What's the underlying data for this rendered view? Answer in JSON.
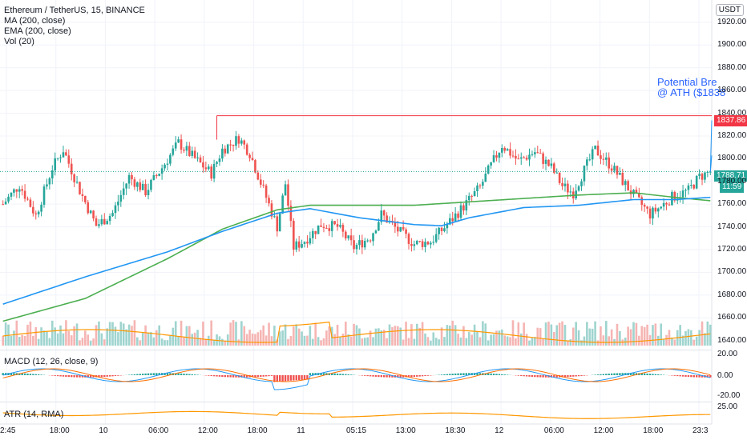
{
  "header": {
    "symbol": "Ethereum / TetherUS, 15, BINANCE",
    "ind1": "MA (200, close)",
    "ind2": "EMA (200, close)",
    "ind3": "Vol (20)",
    "currency": "USDT"
  },
  "annotation": {
    "line1": "Potential Bre",
    "line2": "@ ATH ($1838"
  },
  "price_badges": {
    "ath": "1837.86",
    "last": "1788.71",
    "countdown": "11:59"
  },
  "macd": {
    "label": "MACD (12, 26, close, 9)",
    "ticks": [
      "20.00",
      "0.00",
      "-20.00"
    ]
  },
  "atr": {
    "label": "ATR (14, RMA)",
    "ticks": [
      "25.00"
    ]
  },
  "colors": {
    "up": "#26a69a",
    "down": "#ef5350",
    "ma": "#4caf50",
    "ema": "#2196f3",
    "vol_ma": "#ff9800",
    "macd_line": "#2196f3",
    "signal_line": "#ff6d00",
    "ath_line": "#f23645"
  },
  "chart_data": {
    "type": "candlestick",
    "ylim": [
      1632,
      1934
    ],
    "y_ticks": [
      1640,
      1660,
      1680,
      1700,
      1720,
      1740,
      1760,
      1780,
      1800,
      1820,
      1840,
      1860,
      1880,
      1900,
      1920
    ],
    "x_ticks": [
      "2:45",
      "18:00",
      "10",
      "06:00",
      "12:00",
      "18:00",
      "11",
      "05:15",
      "13:00",
      "18:30",
      "12",
      "06:00",
      "12:00",
      "18:00",
      "23:3"
    ],
    "ath_level": 1837.86,
    "last_price": 1788.71,
    "close_anchors": [
      [
        0,
        1760
      ],
      [
        6,
        1777
      ],
      [
        12,
        1750
      ],
      [
        18,
        1792
      ],
      [
        22,
        1808
      ],
      [
        28,
        1772
      ],
      [
        34,
        1741
      ],
      [
        40,
        1752
      ],
      [
        46,
        1784
      ],
      [
        52,
        1771
      ],
      [
        58,
        1792
      ],
      [
        64,
        1814
      ],
      [
        70,
        1800
      ],
      [
        76,
        1787
      ],
      [
        80,
        1808
      ],
      [
        86,
        1818
      ],
      [
        90,
        1805
      ],
      [
        96,
        1766
      ],
      [
        100,
        1740
      ],
      [
        103,
        1778
      ],
      [
        106,
        1722
      ],
      [
        110,
        1728
      ],
      [
        116,
        1742
      ],
      [
        122,
        1740
      ],
      [
        128,
        1722
      ],
      [
        134,
        1731
      ],
      [
        138,
        1751
      ],
      [
        144,
        1737
      ],
      [
        150,
        1725
      ],
      [
        156,
        1727
      ],
      [
        162,
        1742
      ],
      [
        168,
        1758
      ],
      [
        174,
        1775
      ],
      [
        178,
        1794
      ],
      [
        182,
        1812
      ],
      [
        188,
        1798
      ],
      [
        194,
        1806
      ],
      [
        200,
        1792
      ],
      [
        204,
        1776
      ],
      [
        208,
        1770
      ],
      [
        212,
        1790
      ],
      [
        216,
        1808
      ],
      [
        222,
        1793
      ],
      [
        228,
        1774
      ],
      [
        232,
        1762
      ],
      [
        236,
        1751
      ],
      [
        240,
        1758
      ],
      [
        244,
        1766
      ],
      [
        250,
        1772
      ],
      [
        254,
        1784
      ],
      [
        258,
        1788.7
      ]
    ],
    "ma200_anchors": [
      [
        0,
        1657
      ],
      [
        30,
        1677
      ],
      [
        60,
        1712
      ],
      [
        80,
        1738
      ],
      [
        100,
        1755
      ],
      [
        112,
        1759
      ],
      [
        130,
        1759
      ],
      [
        150,
        1759
      ],
      [
        170,
        1762
      ],
      [
        190,
        1765
      ],
      [
        210,
        1768
      ],
      [
        230,
        1770
      ],
      [
        245,
        1766
      ],
      [
        258,
        1763
      ]
    ],
    "ema200_anchors": [
      [
        0,
        1672
      ],
      [
        30,
        1696
      ],
      [
        60,
        1718
      ],
      [
        80,
        1736
      ],
      [
        100,
        1752
      ],
      [
        112,
        1756
      ],
      [
        130,
        1748
      ],
      [
        150,
        1742
      ],
      [
        160,
        1741
      ],
      [
        170,
        1748
      ],
      [
        190,
        1757
      ],
      [
        210,
        1759
      ],
      [
        230,
        1764
      ],
      [
        245,
        1764
      ],
      [
        258,
        1766
      ]
    ]
  }
}
